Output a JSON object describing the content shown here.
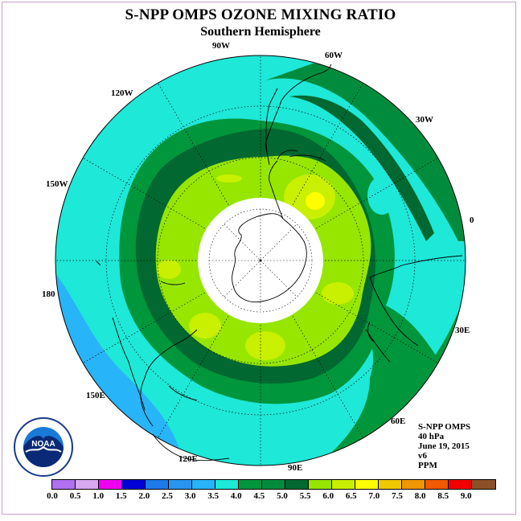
{
  "header": {
    "title": "S-NPP OMPS OZONE MIXING RATIO",
    "subtitle": "Southern Hemisphere"
  },
  "map": {
    "projection": "south-polar-stereographic",
    "longitude_labels": [
      "90W",
      "60W",
      "30W",
      "0",
      "30E",
      "60E",
      "90E",
      "120E",
      "150E",
      "180",
      "150W",
      "120W"
    ],
    "pole_hole_fill": "#ffffff",
    "dominant_levels_ppm": {
      "outer_ring": "3.5-4.0",
      "inner_ring": "4.5-5.0",
      "core": "5.0-6.0",
      "max_patch": "6.0-6.5",
      "low_patch_pacific": "3.0-3.5"
    }
  },
  "info": {
    "instrument": "S-NPP OMPS",
    "level": "40 hPa",
    "date": "June 19, 2015",
    "version": "v6",
    "units": "PPM"
  },
  "logo": {
    "text": "NOAA",
    "icon": "noaa-logo"
  },
  "colorbar": {
    "ticks": [
      "0.0",
      "0.5",
      "1.0",
      "1.5",
      "2.0",
      "2.5",
      "3.0",
      "3.5",
      "4.0",
      "4.5",
      "5.0",
      "5.5",
      "6.0",
      "6.5",
      "7.0",
      "7.5",
      "8.0",
      "8.5",
      "9.0"
    ],
    "colors": [
      "#b070f0",
      "#d8a8f0",
      "#f000f0",
      "#0000d8",
      "#1e7ae8",
      "#2896f0",
      "#28b4f8",
      "#1ee8d8",
      "#00963c",
      "#008c3c",
      "#006830",
      "#96e600",
      "#c8f000",
      "#ffff00",
      "#f0c800",
      "#f09600",
      "#f05a00",
      "#f00000",
      "#8c5028"
    ]
  }
}
